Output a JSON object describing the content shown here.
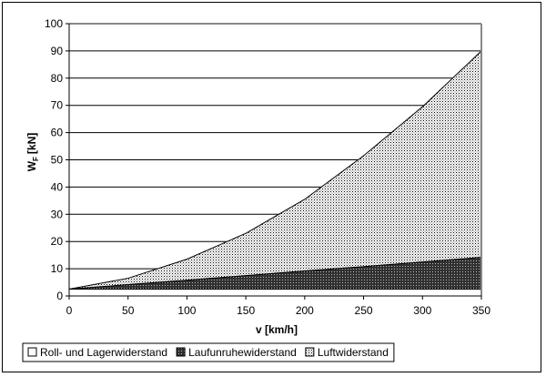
{
  "chart_data": {
    "type": "area",
    "stacked": true,
    "x": [
      0,
      50,
      100,
      150,
      200,
      250,
      300,
      350
    ],
    "xlabel": "v [km/h]",
    "ylabel_main": "W",
    "ylabel_sub": "F",
    "ylabel_unit": "[kN]",
    "xlim": [
      0,
      350
    ],
    "ylim": [
      0,
      100
    ],
    "xticks": [
      0,
      50,
      100,
      150,
      200,
      250,
      300,
      350
    ],
    "yticks": [
      0,
      10,
      20,
      30,
      40,
      50,
      60,
      70,
      80,
      90,
      100
    ],
    "grid": "horizontal",
    "legend_position": "bottom",
    "series": [
      {
        "name": "Roll- und Lagerwiderstand",
        "values": [
          2.5,
          2.5,
          2.5,
          2.5,
          2.5,
          2.5,
          2.5,
          2.5
        ]
      },
      {
        "name": "Laufunruhewiderstand",
        "values": [
          0,
          1.7,
          3.3,
          5.0,
          6.7,
          8.3,
          10.0,
          11.7
        ]
      },
      {
        "name": "Luftwiderstand",
        "values": [
          0,
          2.3,
          7.7,
          15.5,
          26.3,
          40.7,
          57.0,
          75.8
        ]
      }
    ]
  }
}
